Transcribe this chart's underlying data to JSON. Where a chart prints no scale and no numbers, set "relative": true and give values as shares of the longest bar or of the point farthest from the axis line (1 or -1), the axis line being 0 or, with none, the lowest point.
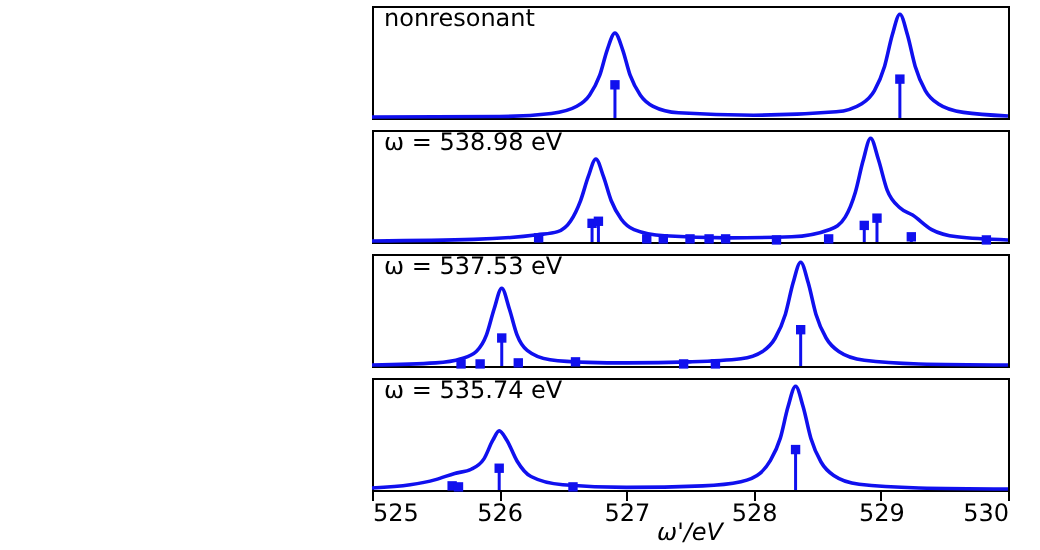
{
  "chart_data": [
    {
      "type": "line",
      "title": "nonresonant",
      "relative": true,
      "xlim": [
        525,
        530
      ],
      "xticks": [
        525,
        526,
        527,
        528,
        529,
        530
      ],
      "tick_labels": false,
      "series": [
        {
          "type": "line",
          "color": "#1010ee",
          "x": [
            525,
            526,
            526.41,
            526.61,
            526.71,
            526.79,
            526.85,
            526.91,
            526.97,
            527.03,
            527.11,
            527.21,
            527.41,
            528,
            528.65,
            528.85,
            528.95,
            529.03,
            529.09,
            529.15,
            529.21,
            529.27,
            529.35,
            529.45,
            529.65,
            530
          ],
          "values": [
            0.01,
            0.014,
            0.044,
            0.113,
            0.22,
            0.41,
            0.66,
            0.82,
            0.66,
            0.41,
            0.22,
            0.113,
            0.05,
            0.027,
            0.06,
            0.138,
            0.265,
            0.5,
            0.8,
            1,
            0.8,
            0.5,
            0.265,
            0.138,
            0.054,
            0.02
          ]
        },
        {
          "type": "lollipop",
          "marker": "square",
          "color": "#1010ee",
          "x": [
            526.91,
            529.15
          ],
          "values": [
            0.32,
            0.375
          ]
        }
      ]
    },
    {
      "type": "line",
      "title": "ω = 538.98 eV",
      "relative": true,
      "xlim": [
        525,
        530
      ],
      "xticks": [
        525,
        526,
        527,
        528,
        529,
        530
      ],
      "tick_labels": false,
      "series": [
        {
          "type": "line",
          "color": "#1010ee",
          "x": [
            525,
            525.8,
            526.3,
            526.46,
            526.56,
            526.64,
            526.7,
            526.76,
            526.82,
            526.88,
            526.96,
            527.06,
            527.3,
            527.8,
            528.3,
            528.6,
            528.72,
            528.8,
            528.86,
            528.92,
            528.98,
            529.05,
            529.15,
            529.25,
            529.4,
            529.6,
            530
          ],
          "values": [
            0.01,
            0.025,
            0.07,
            0.1,
            0.2,
            0.4,
            0.63,
            0.8,
            0.63,
            0.4,
            0.22,
            0.12,
            0.06,
            0.04,
            0.05,
            0.12,
            0.24,
            0.48,
            0.78,
            1,
            0.8,
            0.5,
            0.33,
            0.26,
            0.12,
            0.05,
            0.02
          ]
        },
        {
          "type": "lollipop",
          "marker": "square",
          "color": "#1010ee",
          "x": [
            526.31,
            526.73,
            526.78,
            527.16,
            527.29,
            527.5,
            527.65,
            527.78,
            528.18,
            528.59,
            528.87,
            528.97,
            529.24,
            529.83
          ],
          "values": [
            0.04,
            0.18,
            0.2,
            0.03,
            0.03,
            0.03,
            0.03,
            0.03,
            0.02,
            0.03,
            0.16,
            0.23,
            0.05,
            0.02
          ]
        }
      ]
    },
    {
      "type": "line",
      "title": "ω = 537.53 eV",
      "relative": true,
      "xlim": [
        525,
        530
      ],
      "xticks": [
        525,
        526,
        527,
        528,
        529,
        530
      ],
      "tick_labels": false,
      "series": [
        {
          "type": "line",
          "color": "#1010ee",
          "x": [
            525,
            525.5,
            525.7,
            525.82,
            525.9,
            525.96,
            526.02,
            526.08,
            526.14,
            526.22,
            526.4,
            526.7,
            527,
            527.5,
            527.9,
            528.07,
            528.17,
            528.25,
            528.31,
            528.37,
            528.43,
            528.49,
            528.57,
            528.67,
            528.87,
            529.3,
            530
          ],
          "values": [
            0.01,
            0.03,
            0.07,
            0.14,
            0.3,
            0.55,
            0.75,
            0.55,
            0.3,
            0.15,
            0.06,
            0.035,
            0.03,
            0.04,
            0.07,
            0.14,
            0.27,
            0.5,
            0.8,
            1,
            0.8,
            0.5,
            0.27,
            0.14,
            0.055,
            0.02,
            0.01
          ]
        },
        {
          "type": "lollipop",
          "marker": "square",
          "color": "#1010ee",
          "x": [
            525.7,
            525.85,
            526.02,
            526.15,
            526.6,
            527.45,
            527.7,
            528.37
          ],
          "values": [
            0.02,
            0.02,
            0.27,
            0.03,
            0.04,
            0.02,
            0.02,
            0.35
          ]
        }
      ]
    },
    {
      "type": "line",
      "title": "ω = 535.74 eV",
      "xlabel": "ω'/eV",
      "relative": true,
      "xlim": [
        525,
        530
      ],
      "xticks": [
        525,
        526,
        527,
        528,
        529,
        530
      ],
      "tick_labels": "x",
      "series": [
        {
          "type": "line",
          "color": "#1010ee",
          "x": [
            525,
            525.3,
            525.5,
            525.65,
            525.78,
            525.88,
            525.95,
            526,
            526.06,
            526.14,
            526.25,
            526.5,
            527,
            527.6,
            527.9,
            528.05,
            528.13,
            528.21,
            528.27,
            528.33,
            528.39,
            528.45,
            528.53,
            528.63,
            528.83,
            529.3,
            530
          ],
          "values": [
            0.02,
            0.05,
            0.1,
            0.16,
            0.2,
            0.3,
            0.48,
            0.57,
            0.48,
            0.28,
            0.13,
            0.05,
            0.025,
            0.04,
            0.08,
            0.16,
            0.28,
            0.5,
            0.8,
            1,
            0.8,
            0.5,
            0.27,
            0.14,
            0.055,
            0.02,
            0.01
          ]
        },
        {
          "type": "lollipop",
          "marker": "square",
          "color": "#1010ee",
          "x": [
            525.63,
            525.68,
            526.0,
            526.58,
            528.33
          ],
          "values": [
            0.04,
            0.03,
            0.21,
            0.03,
            0.39
          ]
        }
      ]
    }
  ]
}
